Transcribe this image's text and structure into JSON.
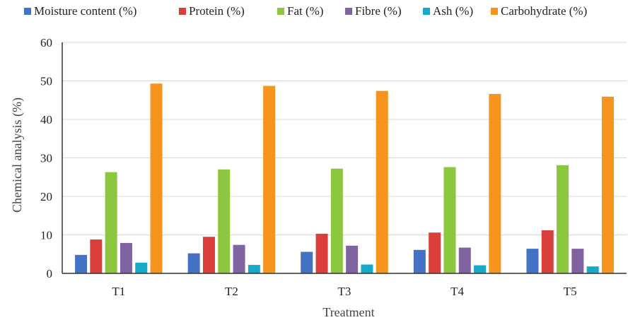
{
  "chart_data": {
    "type": "bar",
    "title": "",
    "xlabel": "Treatment",
    "ylabel": "Chemical analysis (%)",
    "ylim": [
      0,
      60
    ],
    "yticks": [
      0,
      10,
      20,
      30,
      40,
      50,
      60
    ],
    "grid": true,
    "legend_position": "top",
    "categories": [
      "T1",
      "T2",
      "T3",
      "T4",
      "T5"
    ],
    "series": [
      {
        "name": "Moisture content (%)",
        "color": "#4472c4",
        "values": [
          4.8,
          5.2,
          5.6,
          6.1,
          6.4
        ]
      },
      {
        "name": "Protein (%)",
        "color": "#d9403b",
        "values": [
          8.8,
          9.5,
          10.3,
          10.6,
          11.2
        ]
      },
      {
        "name": "Fat (%)",
        "color": "#8dc63f",
        "values": [
          26.3,
          27.0,
          27.2,
          27.6,
          28.1
        ]
      },
      {
        "name": "Fibre (%)",
        "color": "#8064a2",
        "values": [
          7.9,
          7.4,
          7.2,
          6.7,
          6.4
        ]
      },
      {
        "name": "Ash (%)",
        "color": "#17a9c9",
        "values": [
          2.8,
          2.2,
          2.3,
          2.1,
          1.8
        ]
      },
      {
        "name": "Carbohydrate (%)",
        "color": "#f7941d",
        "values": [
          49.3,
          48.7,
          47.4,
          46.6,
          45.9
        ]
      }
    ]
  }
}
